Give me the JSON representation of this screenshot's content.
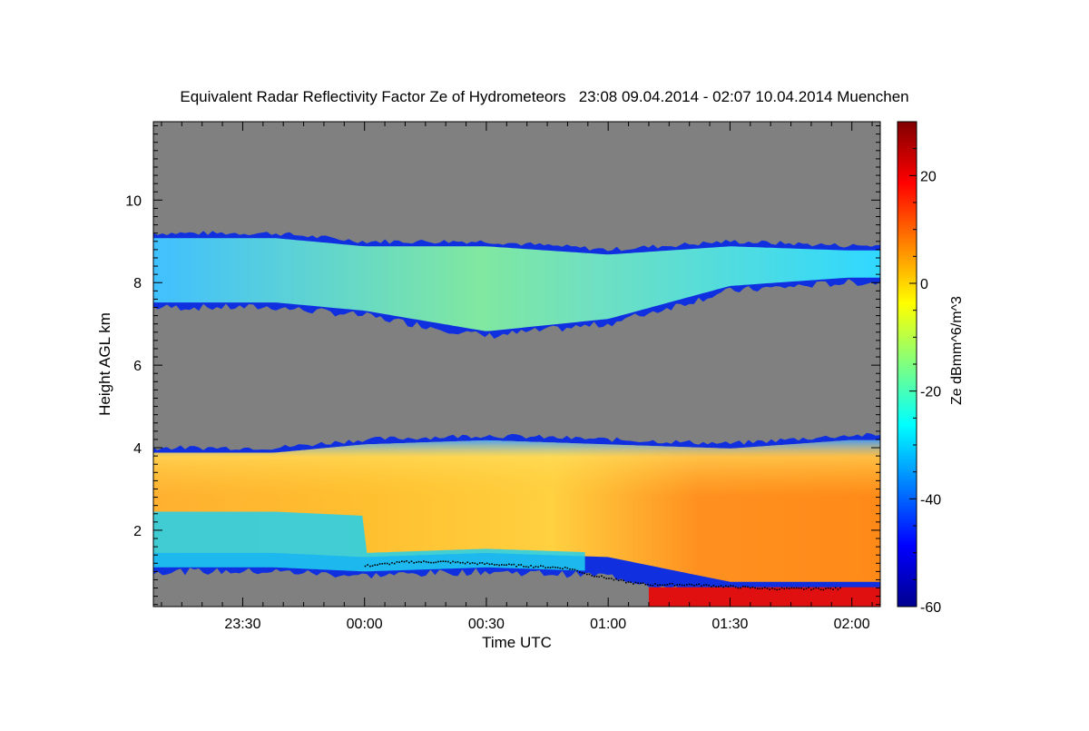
{
  "chart_data": {
    "type": "heatmap",
    "title": "Equivalent Radar Reflectivity Factor Ze of Hydrometeors   23:08 09.04.2014 - 02:07 10.04.2014 Muenchen",
    "xlabel": "Time UTC",
    "ylabel": "Height AGL km",
    "colorbar_label": "Ze dBmm^6/m^3",
    "xlim": [
      "23:08",
      "02:07"
    ],
    "x_ticks": [
      "23:30",
      "00:00",
      "00:30",
      "01:00",
      "01:30",
      "02:00"
    ],
    "ylim": [
      0.15,
      11.9
    ],
    "y_ticks": [
      2,
      4,
      6,
      8,
      10
    ],
    "clim": [
      -60,
      30
    ],
    "colorbar_ticks": [
      20,
      0,
      -20,
      -40,
      -60
    ],
    "colormap": "jet",
    "background_color": "#808080",
    "layers": [
      {
        "name": "upper cloud layer",
        "time_min": [
          -22,
          0,
          30,
          60,
          90,
          119
        ],
        "top_km": [
          9.2,
          9.0,
          9.0,
          8.8,
          9.0,
          8.9
        ],
        "base_km": [
          7.4,
          7.2,
          6.7,
          7.0,
          7.8,
          8.0
        ],
        "ze_range_dbz": [
          -45,
          -15
        ]
      },
      {
        "name": "lower precipitation layer",
        "time_min": [
          -22,
          0,
          30,
          60,
          90,
          119
        ],
        "top_km": [
          4.0,
          4.2,
          4.3,
          4.2,
          4.1,
          4.3
        ],
        "base_km": [
          1.0,
          0.9,
          1.0,
          0.9,
          0.3,
          0.3
        ],
        "ze_range_dbz": [
          -40,
          10
        ]
      }
    ],
    "cloud_base_detection": {
      "time_min": [
        0,
        10,
        20,
        30,
        40,
        50,
        55,
        60,
        65,
        70,
        80,
        90,
        100,
        110,
        117
      ],
      "height_km": [
        1.15,
        1.25,
        1.25,
        1.2,
        1.15,
        1.1,
        0.95,
        0.85,
        0.75,
        0.7,
        0.7,
        0.65,
        0.6,
        0.6,
        0.6
      ]
    }
  }
}
